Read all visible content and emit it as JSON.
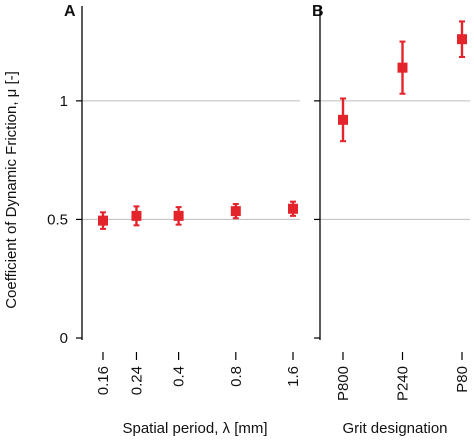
{
  "colors": {
    "marker": "#e3242b",
    "axis": "#000000",
    "grid": "#bdbdbd"
  },
  "y_axis": {
    "label": "Coefficient   of Dynamic  Friction,   μ [-]",
    "ticks": [
      "0",
      "0.5",
      "1"
    ],
    "tick_values": [
      0,
      0.5,
      1
    ],
    "range": [
      0,
      1.4
    ]
  },
  "chart_data": [
    {
      "type": "scatter",
      "panel_label": "A",
      "xlabel": "Spatial   period,   λ [mm]",
      "x_tick_labels": [
        "0.16",
        "0.24",
        "0.4",
        "0.8",
        "1.6"
      ],
      "x": [
        0.16,
        0.24,
        0.4,
        0.8,
        1.6
      ],
      "x_scale": "log",
      "y": [
        0.495,
        0.515,
        0.515,
        0.535,
        0.545
      ],
      "error": [
        0.035,
        0.04,
        0.037,
        0.03,
        0.03
      ],
      "ylim": [
        0,
        1.4
      ],
      "grid": "horizontal"
    },
    {
      "type": "scatter",
      "panel_label": "B",
      "xlabel": "Grit  designation",
      "categories": [
        "P800",
        "P240",
        "P80"
      ],
      "y": [
        0.92,
        1.14,
        1.26
      ],
      "error": [
        0.09,
        0.11,
        0.075
      ],
      "ylim": [
        0,
        1.4
      ],
      "grid": "horizontal"
    }
  ]
}
